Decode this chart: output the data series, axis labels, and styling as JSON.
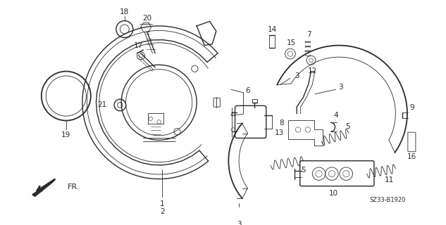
{
  "background_color": "#ffffff",
  "line_color": "#2a2a2a",
  "diagram_code": "SZ33-B1920",
  "fig_width": 6.33,
  "fig_height": 3.2,
  "dpi": 100
}
